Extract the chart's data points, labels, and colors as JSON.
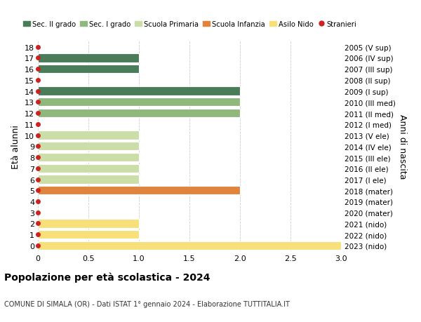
{
  "yticks": [
    0,
    1,
    2,
    3,
    4,
    5,
    6,
    7,
    8,
    9,
    10,
    11,
    12,
    13,
    14,
    15,
    16,
    17,
    18
  ],
  "right_labels": [
    "2023 (nido)",
    "2022 (nido)",
    "2021 (nido)",
    "2020 (mater)",
    "2019 (mater)",
    "2018 (mater)",
    "2017 (I ele)",
    "2016 (II ele)",
    "2015 (III ele)",
    "2014 (IV ele)",
    "2013 (V ele)",
    "2012 (I med)",
    "2011 (II med)",
    "2010 (III med)",
    "2009 (I sup)",
    "2008 (II sup)",
    "2007 (III sup)",
    "2006 (IV sup)",
    "2005 (V sup)"
  ],
  "bars": [
    {
      "y": 0,
      "value": 3.0,
      "color": "#f7e07a"
    },
    {
      "y": 1,
      "value": 1.0,
      "color": "#f7e07a"
    },
    {
      "y": 2,
      "value": 1.0,
      "color": "#f7e07a"
    },
    {
      "y": 5,
      "value": 2.0,
      "color": "#e0843d"
    },
    {
      "y": 6,
      "value": 1.0,
      "color": "#ccdea8"
    },
    {
      "y": 7,
      "value": 1.0,
      "color": "#ccdea8"
    },
    {
      "y": 8,
      "value": 1.0,
      "color": "#ccdea8"
    },
    {
      "y": 9,
      "value": 1.0,
      "color": "#ccdea8"
    },
    {
      "y": 10,
      "value": 1.0,
      "color": "#ccdea8"
    },
    {
      "y": 12,
      "value": 2.0,
      "color": "#90b87c"
    },
    {
      "y": 13,
      "value": 2.0,
      "color": "#90b87c"
    },
    {
      "y": 14,
      "value": 2.0,
      "color": "#4a7c59"
    },
    {
      "y": 16,
      "value": 1.0,
      "color": "#4a7c59"
    },
    {
      "y": 17,
      "value": 1.0,
      "color": "#4a7c59"
    }
  ],
  "stranieri_dots": [
    0,
    1,
    2,
    3,
    4,
    5,
    6,
    7,
    8,
    9,
    10,
    11,
    12,
    13,
    14,
    15,
    16,
    17,
    18
  ],
  "dot_color": "#cc2222",
  "dot_size": 4,
  "xlim": [
    0,
    3.0
  ],
  "xticks": [
    0,
    0.5,
    1.0,
    1.5,
    2.0,
    2.5,
    3.0
  ],
  "xtick_labels": [
    "0",
    "0.5",
    "1.0",
    "1.5",
    "2.0",
    "2.5",
    "3.0"
  ],
  "ylabel_left": "Età alunni",
  "ylabel_right": "Anni di nascita",
  "title": "Popolazione per età scolastica - 2024",
  "subtitle": "COMUNE DI SIMALA (OR) - Dati ISTAT 1° gennaio 2024 - Elaborazione TUTTITALIA.IT",
  "legend_items": [
    {
      "label": "Sec. II grado",
      "color": "#4a7c59",
      "type": "patch"
    },
    {
      "label": "Sec. I grado",
      "color": "#90b87c",
      "type": "patch"
    },
    {
      "label": "Scuola Primaria",
      "color": "#ccdea8",
      "type": "patch"
    },
    {
      "label": "Scuola Infanzia",
      "color": "#e0843d",
      "type": "patch"
    },
    {
      "label": "Asilo Nido",
      "color": "#f7e07a",
      "type": "patch"
    },
    {
      "label": "Stranieri",
      "color": "#cc2222",
      "type": "dot"
    }
  ],
  "bar_height": 0.78,
  "background_color": "#ffffff",
  "grid_color": "#cccccc",
  "ylim_min": -0.5,
  "ylim_max": 18.5
}
